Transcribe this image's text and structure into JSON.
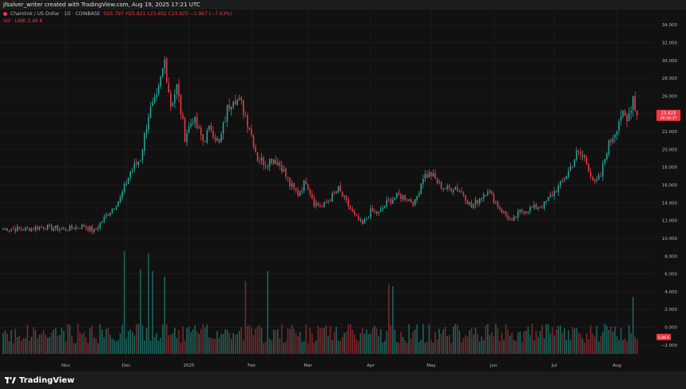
{
  "credit": "jfsalver_writer created with TradingView.com, Aug 19, 2025 17:21 UTC",
  "legend": {
    "symbol": "Chainlink / US Dollar · 1D · COINBASE",
    "ohlc": "O25.797 H25.821 L23.602 C23.825 −1.967 (−7.63%)",
    "volume": "Vol · LINK  3.46 K"
  },
  "footer": {
    "brand": "TradingView"
  },
  "colors": {
    "up": "#26a69a",
    "down": "#f23645",
    "background": "#111111",
    "axis_text": "#b2b5be"
  },
  "price_badge": {
    "price": "23.825",
    "countdown": "06:38:37"
  },
  "volume_badge": "3.46 K",
  "chart_data": {
    "type": "candlestick",
    "yaxis_ticks": [
      "34.000",
      "32.000",
      "30.000",
      "28.000",
      "26.000",
      "24.000",
      "22.000",
      "20.000",
      "18.000",
      "16.000",
      "14.000",
      "12.000",
      "10.000",
      "8.000",
      "6.000",
      "4.000",
      "2.000",
      "0.000",
      "−2.000"
    ],
    "ylim": [
      -3,
      35
    ],
    "x_labels": [
      "Nov",
      "Dec",
      "2025",
      "Feb",
      "Mar",
      "Apr",
      "May",
      "Jun",
      "Jul",
      "Aug"
    ],
    "x_label_days": [
      31,
      61,
      92,
      123,
      151,
      182,
      212,
      243,
      273,
      304
    ],
    "days_total": 323,
    "close_anchors": [
      [
        0,
        11.1
      ],
      [
        10,
        11.0
      ],
      [
        20,
        11.3
      ],
      [
        30,
        11.0
      ],
      [
        40,
        11.4
      ],
      [
        45,
        10.8
      ],
      [
        52,
        12.8
      ],
      [
        58,
        14.5
      ],
      [
        63,
        17.5
      ],
      [
        68,
        19.0
      ],
      [
        72,
        24.0
      ],
      [
        76,
        25.5
      ],
      [
        80,
        30.0
      ],
      [
        83,
        25.0
      ],
      [
        86,
        27.0
      ],
      [
        90,
        21.5
      ],
      [
        94,
        23.5
      ],
      [
        99,
        21.0
      ],
      [
        103,
        22.5
      ],
      [
        107,
        20.5
      ],
      [
        111,
        24.5
      ],
      [
        114,
        26.0
      ],
      [
        118,
        25.0
      ],
      [
        122,
        22.5
      ],
      [
        126,
        19.0
      ],
      [
        130,
        18.5
      ],
      [
        134,
        19.0
      ],
      [
        138,
        18.0
      ],
      [
        142,
        16.0
      ],
      [
        146,
        15.0
      ],
      [
        150,
        16.5
      ],
      [
        154,
        14.0
      ],
      [
        158,
        13.5
      ],
      [
        162,
        14.5
      ],
      [
        166,
        15.5
      ],
      [
        170,
        14.0
      ],
      [
        174,
        12.5
      ],
      [
        178,
        11.5
      ],
      [
        182,
        13.0
      ],
      [
        186,
        12.8
      ],
      [
        190,
        14.0
      ],
      [
        196,
        14.8
      ],
      [
        200,
        14.5
      ],
      [
        204,
        14.0
      ],
      [
        208,
        17.0
      ],
      [
        212,
        17.2
      ],
      [
        216,
        16.0
      ],
      [
        220,
        15.5
      ],
      [
        224,
        15.8
      ],
      [
        228,
        15.0
      ],
      [
        232,
        13.5
      ],
      [
        236,
        14.5
      ],
      [
        240,
        15.5
      ],
      [
        244,
        14.0
      ],
      [
        248,
        12.8
      ],
      [
        252,
        11.8
      ],
      [
        256,
        13.0
      ],
      [
        260,
        13.3
      ],
      [
        264,
        13.5
      ],
      [
        268,
        13.8
      ],
      [
        272,
        15.0
      ],
      [
        276,
        16.0
      ],
      [
        280,
        17.5
      ],
      [
        284,
        19.5
      ],
      [
        287,
        19.3
      ],
      [
        290,
        18.0
      ],
      [
        293,
        16.0
      ],
      [
        296,
        17.0
      ],
      [
        299,
        20.0
      ],
      [
        303,
        22.0
      ],
      [
        306,
        24.0
      ],
      [
        309,
        23.0
      ],
      [
        312,
        26.0
      ],
      [
        314,
        23.825
      ]
    ],
    "volume_spikes": [
      [
        60,
        8.6
      ],
      [
        68,
        6.5
      ],
      [
        72,
        8.3
      ],
      [
        74,
        6.3
      ],
      [
        80,
        5.7
      ],
      [
        120,
        5.2
      ],
      [
        131,
        6.3
      ],
      [
        191,
        4.8
      ],
      [
        193,
        4.6
      ],
      [
        312,
        3.4
      ]
    ]
  }
}
